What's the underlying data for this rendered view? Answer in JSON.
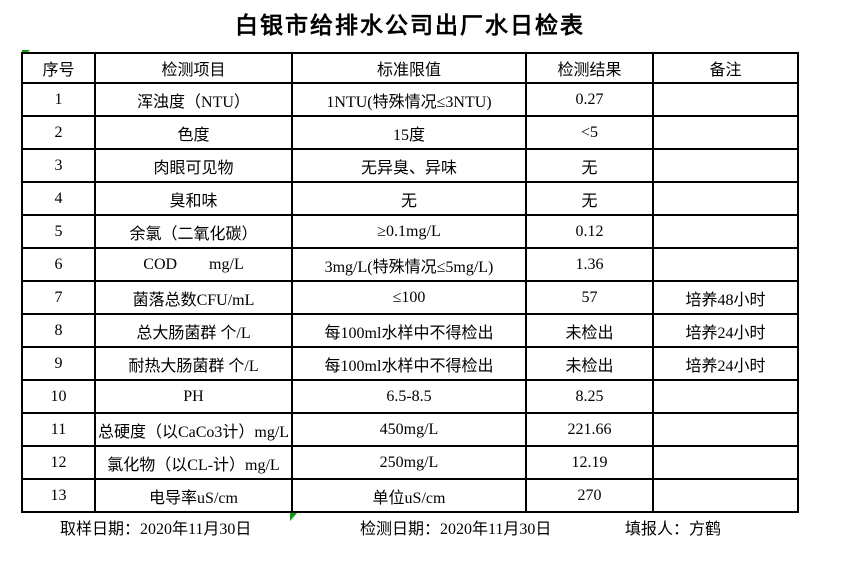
{
  "title": "白银市给排水公司出厂水日检表",
  "colors": {
    "text": "#000000",
    "border": "#000000",
    "background": "#ffffff",
    "marker_green": "#129b12"
  },
  "table": {
    "headers": [
      "序号",
      "检测项目",
      "标准限值",
      "检测结果",
      "备注"
    ],
    "rows": [
      {
        "no": "1",
        "item": "浑浊度（NTU）",
        "limit": "1NTU(特殊情况≤3NTU)",
        "result": "0.27",
        "note": ""
      },
      {
        "no": "2",
        "item": "色度",
        "limit": "15度",
        "result": "<5",
        "note": ""
      },
      {
        "no": "3",
        "item": "肉眼可见物",
        "limit": "无异臭、异味",
        "result": "无",
        "note": ""
      },
      {
        "no": "4",
        "item": "臭和味",
        "limit": "无",
        "result": "无",
        "note": ""
      },
      {
        "no": "5",
        "item": "余氯（二氧化碳）",
        "limit": "≥0.1mg/L",
        "result": "0.12",
        "note": ""
      },
      {
        "no": "6",
        "item": "COD        mg/L",
        "limit": "3mg/L(特殊情况≤5mg/L)",
        "result": "1.36",
        "note": ""
      },
      {
        "no": "7",
        "item": "菌落总数CFU/mL",
        "limit": "≤100",
        "result": "57",
        "note": "培养48小时"
      },
      {
        "no": "8",
        "item": "总大肠菌群 个/L",
        "limit": "每100ml水样中不得检出",
        "result": "未检出",
        "note": "培养24小时"
      },
      {
        "no": "9",
        "item": "耐热大肠菌群 个/L",
        "limit": "每100ml水样中不得检出",
        "result": "未检出",
        "note": "培养24小时"
      },
      {
        "no": "10",
        "item": "PH",
        "limit": "6.5-8.5",
        "result": "8.25",
        "note": ""
      },
      {
        "no": "11",
        "item": "总硬度（以CaCo3计）mg/L",
        "limit": "450mg/L",
        "result": "221.66",
        "note": ""
      },
      {
        "no": "12",
        "item": "氯化物（以CL-计）mg/L",
        "limit": "250mg/L",
        "result": "12.19",
        "note": ""
      },
      {
        "no": "13",
        "item": "电导率uS/cm",
        "limit": "单位uS/cm",
        "result": "270",
        "note": ""
      }
    ]
  },
  "footer": {
    "sampling": {
      "label": "取样日期：",
      "value": "2020年11月30日"
    },
    "testing": {
      "label": "检测日期：",
      "value": "2020年11月30日"
    },
    "reporter": {
      "label": "填报人：",
      "value": "方鹤"
    }
  }
}
